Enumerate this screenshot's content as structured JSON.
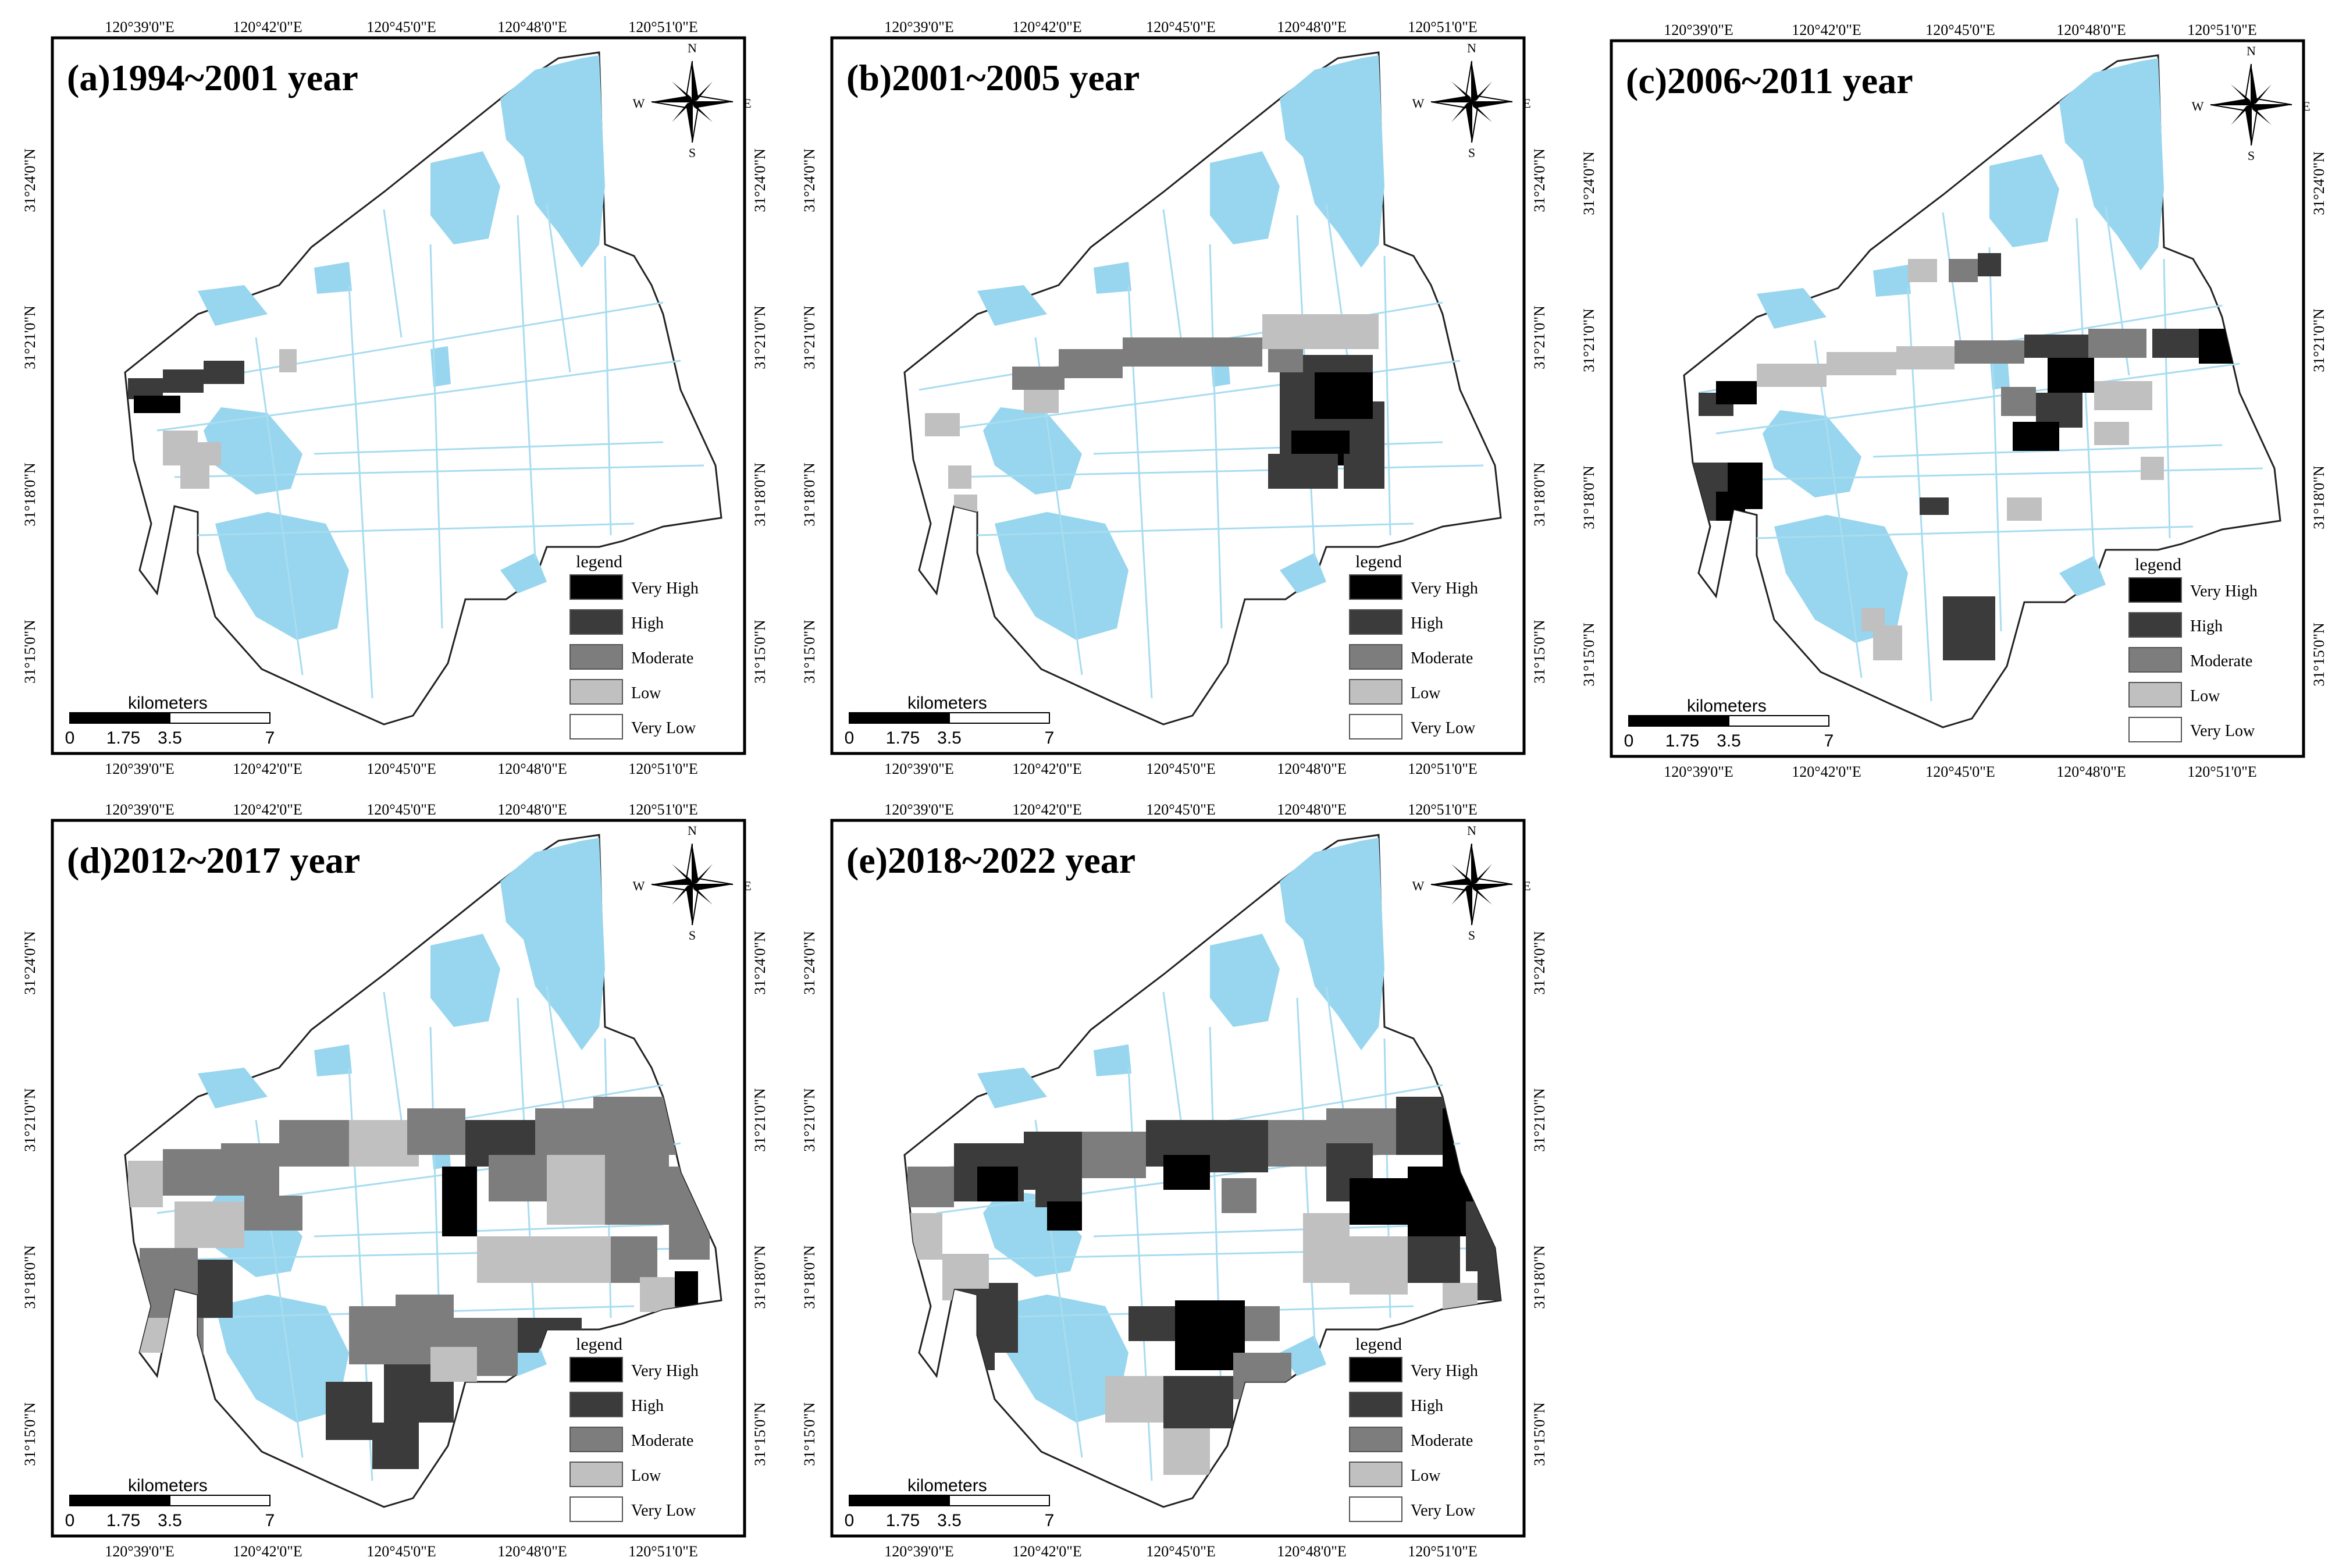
{
  "panels": [
    {
      "id": "a",
      "title": "(a)1994~2001 year"
    },
    {
      "id": "b",
      "title": "(b)2001~2005 year"
    },
    {
      "id": "c",
      "title": "(c)2006~2011 year"
    },
    {
      "id": "d",
      "title": "(d)2012~2017 year"
    },
    {
      "id": "e",
      "title": "(e)2018~2022 year"
    }
  ],
  "lon_ticks": [
    "120°39'0\"E",
    "120°42'0\"E",
    "120°45'0\"E",
    "120°48'0\"E",
    "120°51'0\"E"
  ],
  "lat_ticks": [
    "31°24'0\"N",
    "31°21'0\"N",
    "31°18'0\"N",
    "31°15'0\"N"
  ],
  "legend": {
    "title": "legend",
    "classes": [
      {
        "label": "Very High",
        "color": "#000000"
      },
      {
        "label": "High",
        "color": "#3b3b3b"
      },
      {
        "label": "Moderate",
        "color": "#7d7d7d"
      },
      {
        "label": "Low",
        "color": "#c0c0c0"
      },
      {
        "label": "Very Low",
        "color": "#ffffff"
      }
    ]
  },
  "scale_bar": {
    "unit": "kilometers",
    "labels": [
      "0",
      "1.75",
      "3.5",
      "7"
    ]
  },
  "compass": {
    "n": "N",
    "s": "S",
    "e": "E",
    "w": "W"
  },
  "colors": {
    "water": "#97d6ee",
    "frame": "#000000",
    "roads": "#a8dcf0"
  }
}
